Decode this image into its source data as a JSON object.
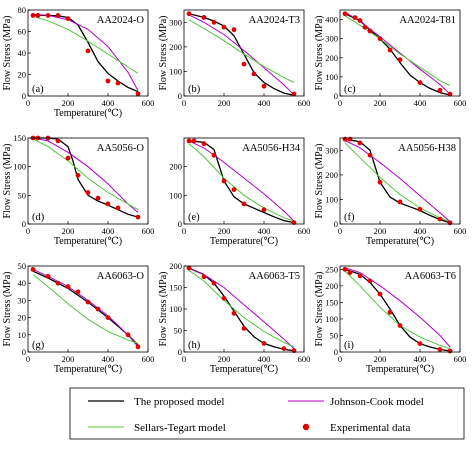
{
  "colors": {
    "proposed": "#000000",
    "johnson_cook": "#b000c8",
    "sellars_tegart": "#4fc83a",
    "experimental": "#e00000"
  },
  "legend": {
    "proposed": "The proposed model",
    "johnson_cook": "Johnson-Cook model",
    "sellars_tegart": "Sellars-Tegart model",
    "experimental": "Experimental data"
  },
  "chart_data": [
    {
      "type": "line",
      "title": "AA2024-O",
      "panel": "(a)",
      "xlabel": "Temperature(℃)",
      "ylabel": "Flow Stress (MPa)",
      "xlim": [
        0,
        600
      ],
      "ylim": [
        0,
        80
      ],
      "xticks": [
        0,
        200,
        400,
        600
      ],
      "yticks": [
        0,
        20,
        40,
        60,
        80
      ],
      "series": [
        {
          "name": "The proposed model",
          "x": [
            25,
            100,
            150,
            200,
            250,
            300,
            350,
            400,
            450,
            500,
            550
          ],
          "y": [
            75,
            75,
            74.5,
            73,
            66,
            50,
            32,
            21,
            14,
            8,
            4
          ]
        },
        {
          "name": "Johnson-Cook model",
          "x": [
            25,
            100,
            200,
            300,
            400,
            500,
            550
          ],
          "y": [
            76,
            75,
            71,
            62,
            46,
            22,
            5
          ]
        },
        {
          "name": "Sellars-Tegart model",
          "x": [
            25,
            100,
            200,
            300,
            400,
            500,
            550
          ],
          "y": [
            74,
            70,
            62,
            51,
            39,
            27,
            21
          ]
        },
        {
          "name": "Experimental data",
          "x": [
            25,
            50,
            100,
            150,
            200,
            300,
            400,
            450,
            550
          ],
          "y": [
            75,
            75,
            75,
            75,
            72,
            42,
            14,
            12,
            2
          ]
        }
      ]
    },
    {
      "type": "line",
      "title": "AA2024-T3",
      "panel": "(b)",
      "xlabel": "",
      "ylabel": "Flow Stress (MPa)",
      "xlim": [
        0,
        600
      ],
      "ylim": [
        0,
        350
      ],
      "xticks": [
        0,
        200,
        400,
        600
      ],
      "yticks": [
        0,
        100,
        200,
        300
      ],
      "series": [
        {
          "name": "The proposed model",
          "x": [
            25,
            100,
            150,
            200,
            250,
            300,
            350,
            400,
            450,
            500,
            550
          ],
          "y": [
            335,
            320,
            305,
            285,
            245,
            170,
            95,
            55,
            30,
            12,
            3
          ]
        },
        {
          "name": "Johnson-Cook model",
          "x": [
            25,
            100,
            200,
            300,
            400,
            500,
            550
          ],
          "y": [
            330,
            300,
            250,
            185,
            115,
            45,
            5
          ]
        },
        {
          "name": "Sellars-Tegart model",
          "x": [
            25,
            100,
            200,
            300,
            400,
            500,
            550
          ],
          "y": [
            310,
            275,
            225,
            170,
            120,
            75,
            55
          ]
        },
        {
          "name": "Experimental data",
          "x": [
            25,
            100,
            150,
            200,
            250,
            300,
            350,
            400,
            550
          ],
          "y": [
            335,
            320,
            300,
            280,
            270,
            130,
            90,
            40,
            8
          ]
        }
      ]
    },
    {
      "type": "line",
      "title": "AA2024-T81",
      "panel": "(c)",
      "xlabel": "",
      "ylabel": "Flow Stress (MPa)",
      "xlim": [
        0,
        600
      ],
      "ylim": [
        0,
        450
      ],
      "xticks": [
        0,
        200,
        400,
        600
      ],
      "yticks": [
        0,
        100,
        200,
        300,
        400
      ],
      "series": [
        {
          "name": "The proposed model",
          "x": [
            25,
            100,
            150,
            200,
            250,
            300,
            350,
            400,
            450,
            500,
            550
          ],
          "y": [
            430,
            395,
            345,
            300,
            245,
            175,
            110,
            70,
            40,
            18,
            5
          ]
        },
        {
          "name": "Johnson-Cook model",
          "x": [
            25,
            100,
            200,
            300,
            400,
            500,
            550
          ],
          "y": [
            440,
            390,
            310,
            225,
            140,
            60,
            10
          ]
        },
        {
          "name": "Sellars-Tegart model",
          "x": [
            25,
            100,
            200,
            300,
            400,
            500,
            550
          ],
          "y": [
            420,
            370,
            300,
            220,
            150,
            80,
            55
          ]
        },
        {
          "name": "Experimental data",
          "x": [
            25,
            75,
            100,
            125,
            150,
            200,
            250,
            300,
            400,
            500,
            550
          ],
          "y": [
            430,
            410,
            395,
            360,
            340,
            300,
            240,
            190,
            70,
            30,
            10
          ]
        }
      ]
    },
    {
      "type": "line",
      "title": "AA5056-O",
      "panel": "(d)",
      "xlabel": "Temperature(℃)",
      "ylabel": "Flow Stress (MPa)",
      "xlim": [
        0,
        600
      ],
      "ylim": [
        0,
        150
      ],
      "xticks": [
        0,
        200,
        400,
        600
      ],
      "yticks": [
        0,
        50,
        100,
        150
      ],
      "series": [
        {
          "name": "The proposed model",
          "x": [
            25,
            100,
            150,
            200,
            225,
            250,
            300,
            350,
            400,
            450,
            500,
            550
          ],
          "y": [
            150,
            150,
            148,
            135,
            110,
            78,
            50,
            40,
            33,
            25,
            17,
            12
          ]
        },
        {
          "name": "Johnson-Cook model",
          "x": [
            25,
            100,
            200,
            300,
            400,
            500,
            550
          ],
          "y": [
            150,
            145,
            125,
            100,
            70,
            35,
            20
          ]
        },
        {
          "name": "Sellars-Tegart model",
          "x": [
            25,
            100,
            200,
            300,
            400,
            500,
            550
          ],
          "y": [
            148,
            135,
            110,
            80,
            55,
            35,
            25
          ]
        },
        {
          "name": "Experimental data",
          "x": [
            25,
            50,
            100,
            150,
            200,
            250,
            300,
            350,
            400,
            450,
            550
          ],
          "y": [
            150,
            150,
            150,
            145,
            115,
            85,
            55,
            45,
            35,
            28,
            12
          ]
        }
      ]
    },
    {
      "type": "line",
      "title": "AA5056-H34",
      "panel": "(e)",
      "xlabel": "Temperature(℃)",
      "ylabel": "",
      "xlim": [
        0,
        600
      ],
      "ylim": [
        0,
        300
      ],
      "xticks": [
        0,
        200,
        400,
        600
      ],
      "yticks": [
        0,
        100,
        200
      ],
      "series": [
        {
          "name": "The proposed model",
          "x": [
            25,
            100,
            150,
            200,
            250,
            300,
            350,
            400,
            450,
            500,
            550
          ],
          "y": [
            290,
            285,
            260,
            150,
            95,
            70,
            55,
            40,
            25,
            12,
            5
          ]
        },
        {
          "name": "Johnson-Cook model",
          "x": [
            25,
            100,
            200,
            300,
            400,
            500,
            550
          ],
          "y": [
            290,
            265,
            215,
            160,
            105,
            45,
            10
          ]
        },
        {
          "name": "Sellars-Tegart model",
          "x": [
            25,
            100,
            200,
            300,
            400,
            500,
            550
          ],
          "y": [
            280,
            235,
            160,
            100,
            55,
            22,
            10
          ]
        },
        {
          "name": "Experimental data",
          "x": [
            25,
            50,
            100,
            150,
            200,
            250,
            300,
            400,
            550
          ],
          "y": [
            290,
            290,
            280,
            240,
            150,
            120,
            70,
            50,
            5
          ]
        }
      ]
    },
    {
      "type": "line",
      "title": "AA5056-H38",
      "panel": "(f)",
      "xlabel": "Temperature(℃)",
      "ylabel": "Flow Stress (MPa)",
      "xlim": [
        0,
        600
      ],
      "ylim": [
        0,
        350
      ],
      "xticks": [
        0,
        200,
        400,
        600
      ],
      "yticks": [
        0,
        100,
        200,
        300
      ],
      "series": [
        {
          "name": "The proposed model",
          "x": [
            25,
            100,
            150,
            200,
            250,
            300,
            350,
            400,
            450,
            500,
            550
          ],
          "y": [
            345,
            335,
            300,
            170,
            110,
            85,
            70,
            55,
            35,
            18,
            5
          ]
        },
        {
          "name": "Johnson-Cook model",
          "x": [
            25,
            100,
            200,
            300,
            400,
            500,
            550
          ],
          "y": [
            340,
            310,
            250,
            185,
            115,
            45,
            10
          ]
        },
        {
          "name": "Sellars-Tegart model",
          "x": [
            25,
            100,
            200,
            300,
            400,
            500,
            550
          ],
          "y": [
            330,
            270,
            190,
            120,
            65,
            25,
            10
          ]
        },
        {
          "name": "Experimental data",
          "x": [
            25,
            50,
            100,
            150,
            200,
            300,
            400,
            500,
            550
          ],
          "y": [
            345,
            345,
            330,
            280,
            170,
            90,
            60,
            20,
            5
          ]
        }
      ]
    },
    {
      "type": "line",
      "title": "AA6063-O",
      "panel": "(g)",
      "xlabel": "Temperature(℃)",
      "ylabel": "Flow Stress (MPa)",
      "xlim": [
        0,
        600
      ],
      "ylim": [
        0,
        50
      ],
      "xticks": [
        0,
        200,
        400,
        600
      ],
      "yticks": [
        0,
        10,
        20,
        30,
        40,
        50
      ],
      "series": [
        {
          "name": "The proposed model",
          "x": [
            25,
            100,
            200,
            300,
            400,
            500,
            550
          ],
          "y": [
            47,
            43,
            37,
            29,
            20,
            10,
            4
          ]
        },
        {
          "name": "Johnson-Cook model",
          "x": [
            25,
            100,
            200,
            300,
            400,
            500,
            550
          ],
          "y": [
            48,
            44,
            38,
            30,
            21,
            10,
            3
          ]
        },
        {
          "name": "Sellars-Tegart model",
          "x": [
            25,
            100,
            200,
            300,
            400,
            500,
            550
          ],
          "y": [
            45,
            38,
            28,
            19,
            12,
            7,
            5
          ]
        },
        {
          "name": "Experimental data",
          "x": [
            25,
            100,
            150,
            200,
            250,
            300,
            350,
            400,
            500,
            550
          ],
          "y": [
            48,
            44,
            40,
            38,
            35,
            29,
            25,
            20,
            10,
            3
          ]
        }
      ]
    },
    {
      "type": "line",
      "title": "AA6063-T5",
      "panel": "(h)",
      "xlabel": "Temperature(℃)",
      "ylabel": "Flow Stress (MPa)",
      "xlim": [
        0,
        600
      ],
      "ylim": [
        0,
        200
      ],
      "xticks": [
        0,
        200,
        400,
        600
      ],
      "yticks": [
        0,
        50,
        100,
        150,
        200
      ],
      "series": [
        {
          "name": "The proposed model",
          "x": [
            25,
            100,
            150,
            200,
            250,
            300,
            350,
            400,
            450,
            500,
            550
          ],
          "y": [
            195,
            180,
            160,
            130,
            95,
            60,
            35,
            20,
            12,
            6,
            3
          ]
        },
        {
          "name": "Johnson-Cook model",
          "x": [
            25,
            100,
            200,
            300,
            400,
            500,
            550
          ],
          "y": [
            195,
            180,
            150,
            110,
            70,
            30,
            8
          ]
        },
        {
          "name": "Sellars-Tegart model",
          "x": [
            25,
            100,
            200,
            300,
            400,
            500,
            550
          ],
          "y": [
            190,
            165,
            120,
            80,
            48,
            22,
            12
          ]
        },
        {
          "name": "Experimental data",
          "x": [
            25,
            100,
            150,
            200,
            250,
            300,
            400,
            500,
            550
          ],
          "y": [
            195,
            175,
            160,
            125,
            90,
            55,
            20,
            8,
            3
          ]
        }
      ]
    },
    {
      "type": "line",
      "title": "AA6063-T6",
      "panel": "(i)",
      "xlabel": "Temperature(℃)",
      "ylabel": "Flow Stress (MPa)",
      "xlim": [
        0,
        600
      ],
      "ylim": [
        0,
        260
      ],
      "xticks": [
        0,
        200,
        400,
        600
      ],
      "yticks": [
        0,
        50,
        100,
        150,
        200,
        250
      ],
      "series": [
        {
          "name": "The proposed model",
          "x": [
            25,
            100,
            150,
            200,
            250,
            300,
            350,
            400,
            450,
            500,
            550
          ],
          "y": [
            250,
            235,
            210,
            175,
            130,
            80,
            45,
            25,
            15,
            8,
            3
          ]
        },
        {
          "name": "Johnson-Cook model",
          "x": [
            25,
            100,
            200,
            300,
            400,
            500,
            550
          ],
          "y": [
            255,
            240,
            200,
            155,
            105,
            50,
            15
          ]
        },
        {
          "name": "Sellars-Tegart model",
          "x": [
            25,
            100,
            200,
            300,
            400,
            500,
            550
          ],
          "y": [
            245,
            200,
            135,
            80,
            45,
            20,
            10
          ]
        },
        {
          "name": "Experimental data",
          "x": [
            25,
            50,
            100,
            150,
            200,
            250,
            300,
            400,
            500,
            550
          ],
          "y": [
            250,
            240,
            230,
            215,
            175,
            120,
            80,
            25,
            8,
            3
          ]
        }
      ]
    }
  ]
}
